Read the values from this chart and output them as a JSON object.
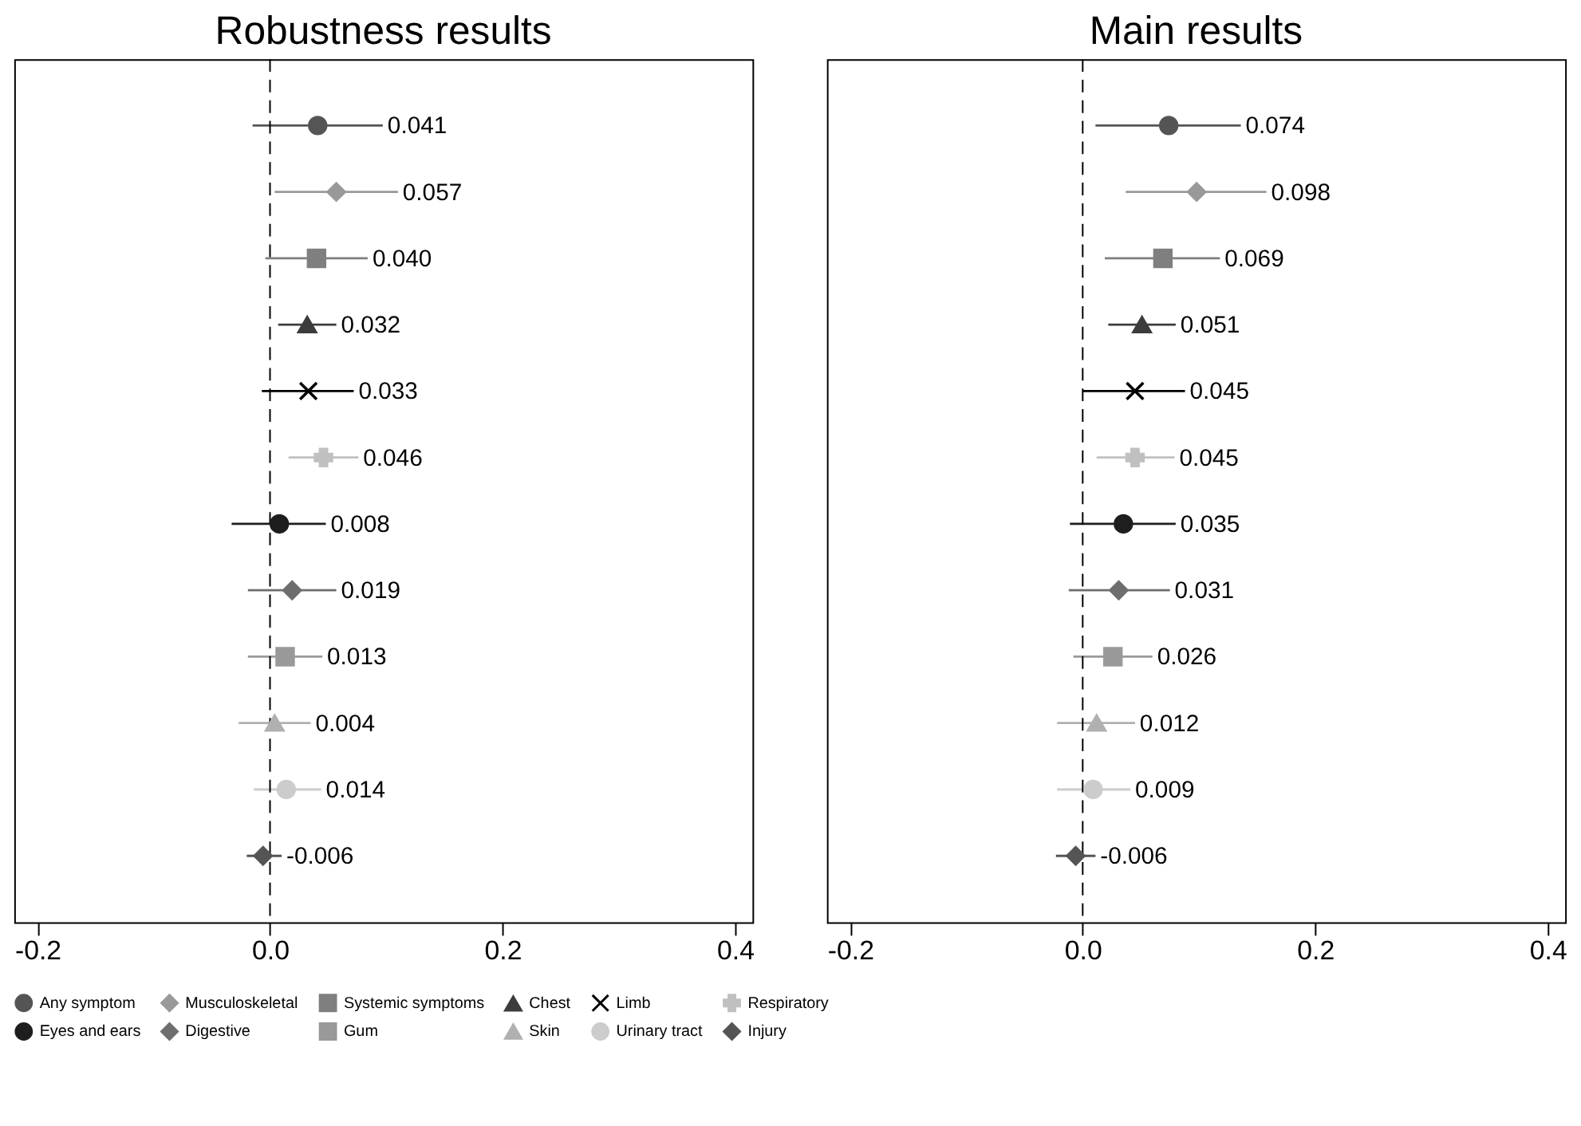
{
  "chart_data": [
    {
      "type": "scatter",
      "orientation": "horizontal",
      "title": "Robustness results",
      "categories": [
        null,
        null,
        null,
        null,
        null,
        null,
        null,
        null,
        null,
        null,
        null,
        null
      ],
      "xlim": [
        -0.22,
        0.415
      ],
      "xticks": [
        {
          "value": -0.2,
          "label": "-0.2"
        },
        {
          "value": 0,
          "label": "0.0"
        },
        {
          "value": 0.2,
          "label": "0.2"
        },
        {
          "value": 0.4,
          "label": "0.4"
        }
      ],
      "tick_labels": "x",
      "grid": false,
      "legend": "bottom",
      "ref_lines": [
        {
          "axis": "x",
          "value": 0,
          "color": "#000000",
          "line_style": "dashed"
        }
      ],
      "series": [
        {
          "name": "Any symptom",
          "color": "#555555",
          "marker": "circle",
          "value_labels": [
            "0.041",
            null,
            null,
            null,
            null,
            null,
            null,
            null,
            null,
            null,
            null,
            null
          ],
          "values": [
            0.041,
            null,
            null,
            null,
            null,
            null,
            null,
            null,
            null,
            null,
            null,
            null
          ],
          "errors": [
            [
              -0.015,
              0.097
            ],
            null,
            null,
            null,
            null,
            null,
            null,
            null,
            null,
            null,
            null,
            null
          ]
        },
        {
          "name": "Musculoskeletal",
          "color": "#999999",
          "marker": "diamond",
          "value_labels": [
            null,
            "0.057",
            null,
            null,
            null,
            null,
            null,
            null,
            null,
            null,
            null,
            null
          ],
          "values": [
            null,
            0.057,
            null,
            null,
            null,
            null,
            null,
            null,
            null,
            null,
            null,
            null
          ],
          "errors": [
            null,
            [
              0.004,
              0.11
            ],
            null,
            null,
            null,
            null,
            null,
            null,
            null,
            null,
            null,
            null
          ]
        },
        {
          "name": "Systemic symptoms",
          "color": "#7f7f7f",
          "marker": "square",
          "value_labels": [
            null,
            null,
            "0.040",
            null,
            null,
            null,
            null,
            null,
            null,
            null,
            null,
            null
          ],
          "values": [
            null,
            null,
            0.04,
            null,
            null,
            null,
            null,
            null,
            null,
            null,
            null,
            null
          ],
          "errors": [
            null,
            null,
            [
              -0.004,
              0.084
            ],
            null,
            null,
            null,
            null,
            null,
            null,
            null,
            null,
            null
          ]
        },
        {
          "name": "Chest",
          "color": "#3c3c3c",
          "marker": "triangle",
          "value_labels": [
            null,
            null,
            null,
            "0.032",
            null,
            null,
            null,
            null,
            null,
            null,
            null,
            null
          ],
          "values": [
            null,
            null,
            null,
            0.032,
            null,
            null,
            null,
            null,
            null,
            null,
            null,
            null
          ],
          "errors": [
            null,
            null,
            null,
            [
              0.007,
              0.057
            ],
            null,
            null,
            null,
            null,
            null,
            null,
            null,
            null
          ]
        },
        {
          "name": "Limb",
          "color": "#000000",
          "marker": "x",
          "value_labels": [
            null,
            null,
            null,
            null,
            "0.033",
            null,
            null,
            null,
            null,
            null,
            null,
            null
          ],
          "values": [
            null,
            null,
            null,
            null,
            0.033,
            null,
            null,
            null,
            null,
            null,
            null,
            null
          ],
          "errors": [
            null,
            null,
            null,
            null,
            [
              -0.007,
              0.072
            ],
            null,
            null,
            null,
            null,
            null,
            null,
            null
          ]
        },
        {
          "name": "Respiratory",
          "color": "#c0c0c0",
          "marker": "cross",
          "value_labels": [
            null,
            null,
            null,
            null,
            null,
            "0.046",
            null,
            null,
            null,
            null,
            null,
            null
          ],
          "values": [
            null,
            null,
            null,
            null,
            null,
            0.046,
            null,
            null,
            null,
            null,
            null,
            null
          ],
          "errors": [
            null,
            null,
            null,
            null,
            null,
            [
              0.016,
              0.076
            ],
            null,
            null,
            null,
            null,
            null,
            null
          ]
        },
        {
          "name": "Eyes and ears",
          "color": "#1e1e1e",
          "marker": "circle",
          "value_labels": [
            null,
            null,
            null,
            null,
            null,
            null,
            "0.008",
            null,
            null,
            null,
            null,
            null
          ],
          "values": [
            null,
            null,
            null,
            null,
            null,
            null,
            0.008,
            null,
            null,
            null,
            null,
            null
          ],
          "errors": [
            null,
            null,
            null,
            null,
            null,
            null,
            [
              -0.033,
              0.048
            ],
            null,
            null,
            null,
            null,
            null
          ]
        },
        {
          "name": "Digestive",
          "color": "#6e6e6e",
          "marker": "diamond",
          "value_labels": [
            null,
            null,
            null,
            null,
            null,
            null,
            null,
            "0.019",
            null,
            null,
            null,
            null
          ],
          "values": [
            null,
            null,
            null,
            null,
            null,
            null,
            null,
            0.019,
            null,
            null,
            null,
            null
          ],
          "errors": [
            null,
            null,
            null,
            null,
            null,
            null,
            null,
            [
              -0.019,
              0.057
            ],
            null,
            null,
            null,
            null
          ]
        },
        {
          "name": "Gum",
          "color": "#999999",
          "marker": "square",
          "value_labels": [
            null,
            null,
            null,
            null,
            null,
            null,
            null,
            null,
            "0.013",
            null,
            null,
            null
          ],
          "values": [
            null,
            null,
            null,
            null,
            null,
            null,
            null,
            null,
            0.013,
            null,
            null,
            null
          ],
          "errors": [
            null,
            null,
            null,
            null,
            null,
            null,
            null,
            null,
            [
              -0.019,
              0.045
            ],
            null,
            null,
            null
          ]
        },
        {
          "name": "Skin",
          "color": "#b0b0b0",
          "marker": "triangle",
          "value_labels": [
            null,
            null,
            null,
            null,
            null,
            null,
            null,
            null,
            null,
            "0.004",
            null,
            null
          ],
          "values": [
            null,
            null,
            null,
            null,
            null,
            null,
            null,
            null,
            null,
            0.004,
            null,
            null
          ],
          "errors": [
            null,
            null,
            null,
            null,
            null,
            null,
            null,
            null,
            null,
            [
              -0.027,
              0.035
            ],
            null,
            null
          ]
        },
        {
          "name": "Urinary tract",
          "color": "#cccccc",
          "marker": "circle",
          "value_labels": [
            null,
            null,
            null,
            null,
            null,
            null,
            null,
            null,
            null,
            null,
            "0.014",
            null
          ],
          "values": [
            null,
            null,
            null,
            null,
            null,
            null,
            null,
            null,
            null,
            null,
            0.014,
            null
          ],
          "errors": [
            null,
            null,
            null,
            null,
            null,
            null,
            null,
            null,
            null,
            null,
            [
              -0.014,
              0.044
            ],
            null
          ]
        },
        {
          "name": "Injury",
          "color": "#555555",
          "marker": "diamond",
          "value_labels": [
            null,
            null,
            null,
            null,
            null,
            null,
            null,
            null,
            null,
            null,
            null,
            "-0.006"
          ],
          "values": [
            null,
            null,
            null,
            null,
            null,
            null,
            null,
            null,
            null,
            null,
            null,
            -0.006
          ],
          "errors": [
            null,
            null,
            null,
            null,
            null,
            null,
            null,
            null,
            null,
            null,
            null,
            [
              -0.02,
              0.01
            ]
          ]
        }
      ]
    },
    {
      "type": "scatter",
      "orientation": "horizontal",
      "title": "Main results",
      "categories": [
        null,
        null,
        null,
        null,
        null,
        null,
        null,
        null,
        null,
        null,
        null,
        null
      ],
      "xlim": [
        -0.22,
        0.415
      ],
      "xticks": [
        {
          "value": -0.2,
          "label": "-0.2"
        },
        {
          "value": 0,
          "label": "0.0"
        },
        {
          "value": 0.2,
          "label": "0.2"
        },
        {
          "value": 0.4,
          "label": "0.4"
        }
      ],
      "tick_labels": "x",
      "grid": false,
      "legend": "bottom",
      "ref_lines": [
        {
          "axis": "x",
          "value": 0,
          "color": "#000000",
          "line_style": "dashed"
        }
      ],
      "series": [
        {
          "name": "Any symptom",
          "color": "#555555",
          "marker": "circle",
          "value_labels": [
            "0.074",
            null,
            null,
            null,
            null,
            null,
            null,
            null,
            null,
            null,
            null,
            null
          ],
          "values": [
            0.074,
            null,
            null,
            null,
            null,
            null,
            null,
            null,
            null,
            null,
            null,
            null
          ],
          "errors": [
            [
              0.011,
              0.136
            ],
            null,
            null,
            null,
            null,
            null,
            null,
            null,
            null,
            null,
            null,
            null
          ]
        },
        {
          "name": "Musculoskeletal",
          "color": "#999999",
          "marker": "diamond",
          "value_labels": [
            null,
            "0.098",
            null,
            null,
            null,
            null,
            null,
            null,
            null,
            null,
            null,
            null
          ],
          "values": [
            null,
            0.098,
            null,
            null,
            null,
            null,
            null,
            null,
            null,
            null,
            null,
            null
          ],
          "errors": [
            null,
            [
              0.037,
              0.158
            ],
            null,
            null,
            null,
            null,
            null,
            null,
            null,
            null,
            null,
            null
          ]
        },
        {
          "name": "Systemic symptoms",
          "color": "#7f7f7f",
          "marker": "square",
          "value_labels": [
            null,
            null,
            "0.069",
            null,
            null,
            null,
            null,
            null,
            null,
            null,
            null,
            null
          ],
          "values": [
            null,
            null,
            0.069,
            null,
            null,
            null,
            null,
            null,
            null,
            null,
            null,
            null
          ],
          "errors": [
            null,
            null,
            [
              0.019,
              0.118
            ],
            null,
            null,
            null,
            null,
            null,
            null,
            null,
            null,
            null
          ]
        },
        {
          "name": "Chest",
          "color": "#3c3c3c",
          "marker": "triangle",
          "value_labels": [
            null,
            null,
            null,
            "0.051",
            null,
            null,
            null,
            null,
            null,
            null,
            null,
            null
          ],
          "values": [
            null,
            null,
            null,
            0.051,
            null,
            null,
            null,
            null,
            null,
            null,
            null,
            null
          ],
          "errors": [
            null,
            null,
            null,
            [
              0.022,
              0.08
            ],
            null,
            null,
            null,
            null,
            null,
            null,
            null,
            null
          ]
        },
        {
          "name": "Limb",
          "color": "#000000",
          "marker": "x",
          "value_labels": [
            null,
            null,
            null,
            null,
            "0.045",
            null,
            null,
            null,
            null,
            null,
            null,
            null
          ],
          "values": [
            null,
            null,
            null,
            null,
            0.045,
            null,
            null,
            null,
            null,
            null,
            null,
            null
          ],
          "errors": [
            null,
            null,
            null,
            null,
            [
              0.0,
              0.088
            ],
            null,
            null,
            null,
            null,
            null,
            null,
            null
          ]
        },
        {
          "name": "Respiratory",
          "color": "#c0c0c0",
          "marker": "cross",
          "value_labels": [
            null,
            null,
            null,
            null,
            null,
            "0.045",
            null,
            null,
            null,
            null,
            null,
            null
          ],
          "values": [
            null,
            null,
            null,
            null,
            null,
            0.045,
            null,
            null,
            null,
            null,
            null,
            null
          ],
          "errors": [
            null,
            null,
            null,
            null,
            null,
            [
              0.012,
              0.079
            ],
            null,
            null,
            null,
            null,
            null,
            null
          ]
        },
        {
          "name": "Eyes and ears",
          "color": "#1e1e1e",
          "marker": "circle",
          "value_labels": [
            null,
            null,
            null,
            null,
            null,
            null,
            "0.035",
            null,
            null,
            null,
            null,
            null
          ],
          "values": [
            null,
            null,
            null,
            null,
            null,
            null,
            0.035,
            null,
            null,
            null,
            null,
            null
          ],
          "errors": [
            null,
            null,
            null,
            null,
            null,
            null,
            [
              -0.011,
              0.08
            ],
            null,
            null,
            null,
            null,
            null
          ]
        },
        {
          "name": "Digestive",
          "color": "#6e6e6e",
          "marker": "diamond",
          "value_labels": [
            null,
            null,
            null,
            null,
            null,
            null,
            null,
            "0.031",
            null,
            null,
            null,
            null
          ],
          "values": [
            null,
            null,
            null,
            null,
            null,
            null,
            null,
            0.031,
            null,
            null,
            null,
            null
          ],
          "errors": [
            null,
            null,
            null,
            null,
            null,
            null,
            null,
            [
              -0.012,
              0.075
            ],
            null,
            null,
            null,
            null
          ]
        },
        {
          "name": "Gum",
          "color": "#999999",
          "marker": "square",
          "value_labels": [
            null,
            null,
            null,
            null,
            null,
            null,
            null,
            null,
            "0.026",
            null,
            null,
            null
          ],
          "values": [
            null,
            null,
            null,
            null,
            null,
            null,
            null,
            null,
            0.026,
            null,
            null,
            null
          ],
          "errors": [
            null,
            null,
            null,
            null,
            null,
            null,
            null,
            null,
            [
              -0.008,
              0.06
            ],
            null,
            null,
            null
          ]
        },
        {
          "name": "Skin",
          "color": "#b0b0b0",
          "marker": "triangle",
          "value_labels": [
            null,
            null,
            null,
            null,
            null,
            null,
            null,
            null,
            null,
            "0.012",
            null,
            null
          ],
          "values": [
            null,
            null,
            null,
            null,
            null,
            null,
            null,
            null,
            null,
            0.012,
            null,
            null
          ],
          "errors": [
            null,
            null,
            null,
            null,
            null,
            null,
            null,
            null,
            null,
            [
              -0.022,
              0.045
            ],
            null,
            null
          ]
        },
        {
          "name": "Urinary tract",
          "color": "#cccccc",
          "marker": "circle",
          "value_labels": [
            null,
            null,
            null,
            null,
            null,
            null,
            null,
            null,
            null,
            null,
            "0.009",
            null
          ],
          "values": [
            null,
            null,
            null,
            null,
            null,
            null,
            null,
            null,
            null,
            null,
            0.009,
            null
          ],
          "errors": [
            null,
            null,
            null,
            null,
            null,
            null,
            null,
            null,
            null,
            null,
            [
              -0.022,
              0.041
            ],
            null
          ]
        },
        {
          "name": "Injury",
          "color": "#555555",
          "marker": "diamond",
          "value_labels": [
            null,
            null,
            null,
            null,
            null,
            null,
            null,
            null,
            null,
            null,
            null,
            "-0.006"
          ],
          "values": [
            null,
            null,
            null,
            null,
            null,
            null,
            null,
            null,
            null,
            null,
            null,
            -0.006
          ],
          "errors": [
            null,
            null,
            null,
            null,
            null,
            null,
            null,
            null,
            null,
            null,
            null,
            [
              -0.023,
              0.011
            ]
          ]
        }
      ]
    }
  ]
}
